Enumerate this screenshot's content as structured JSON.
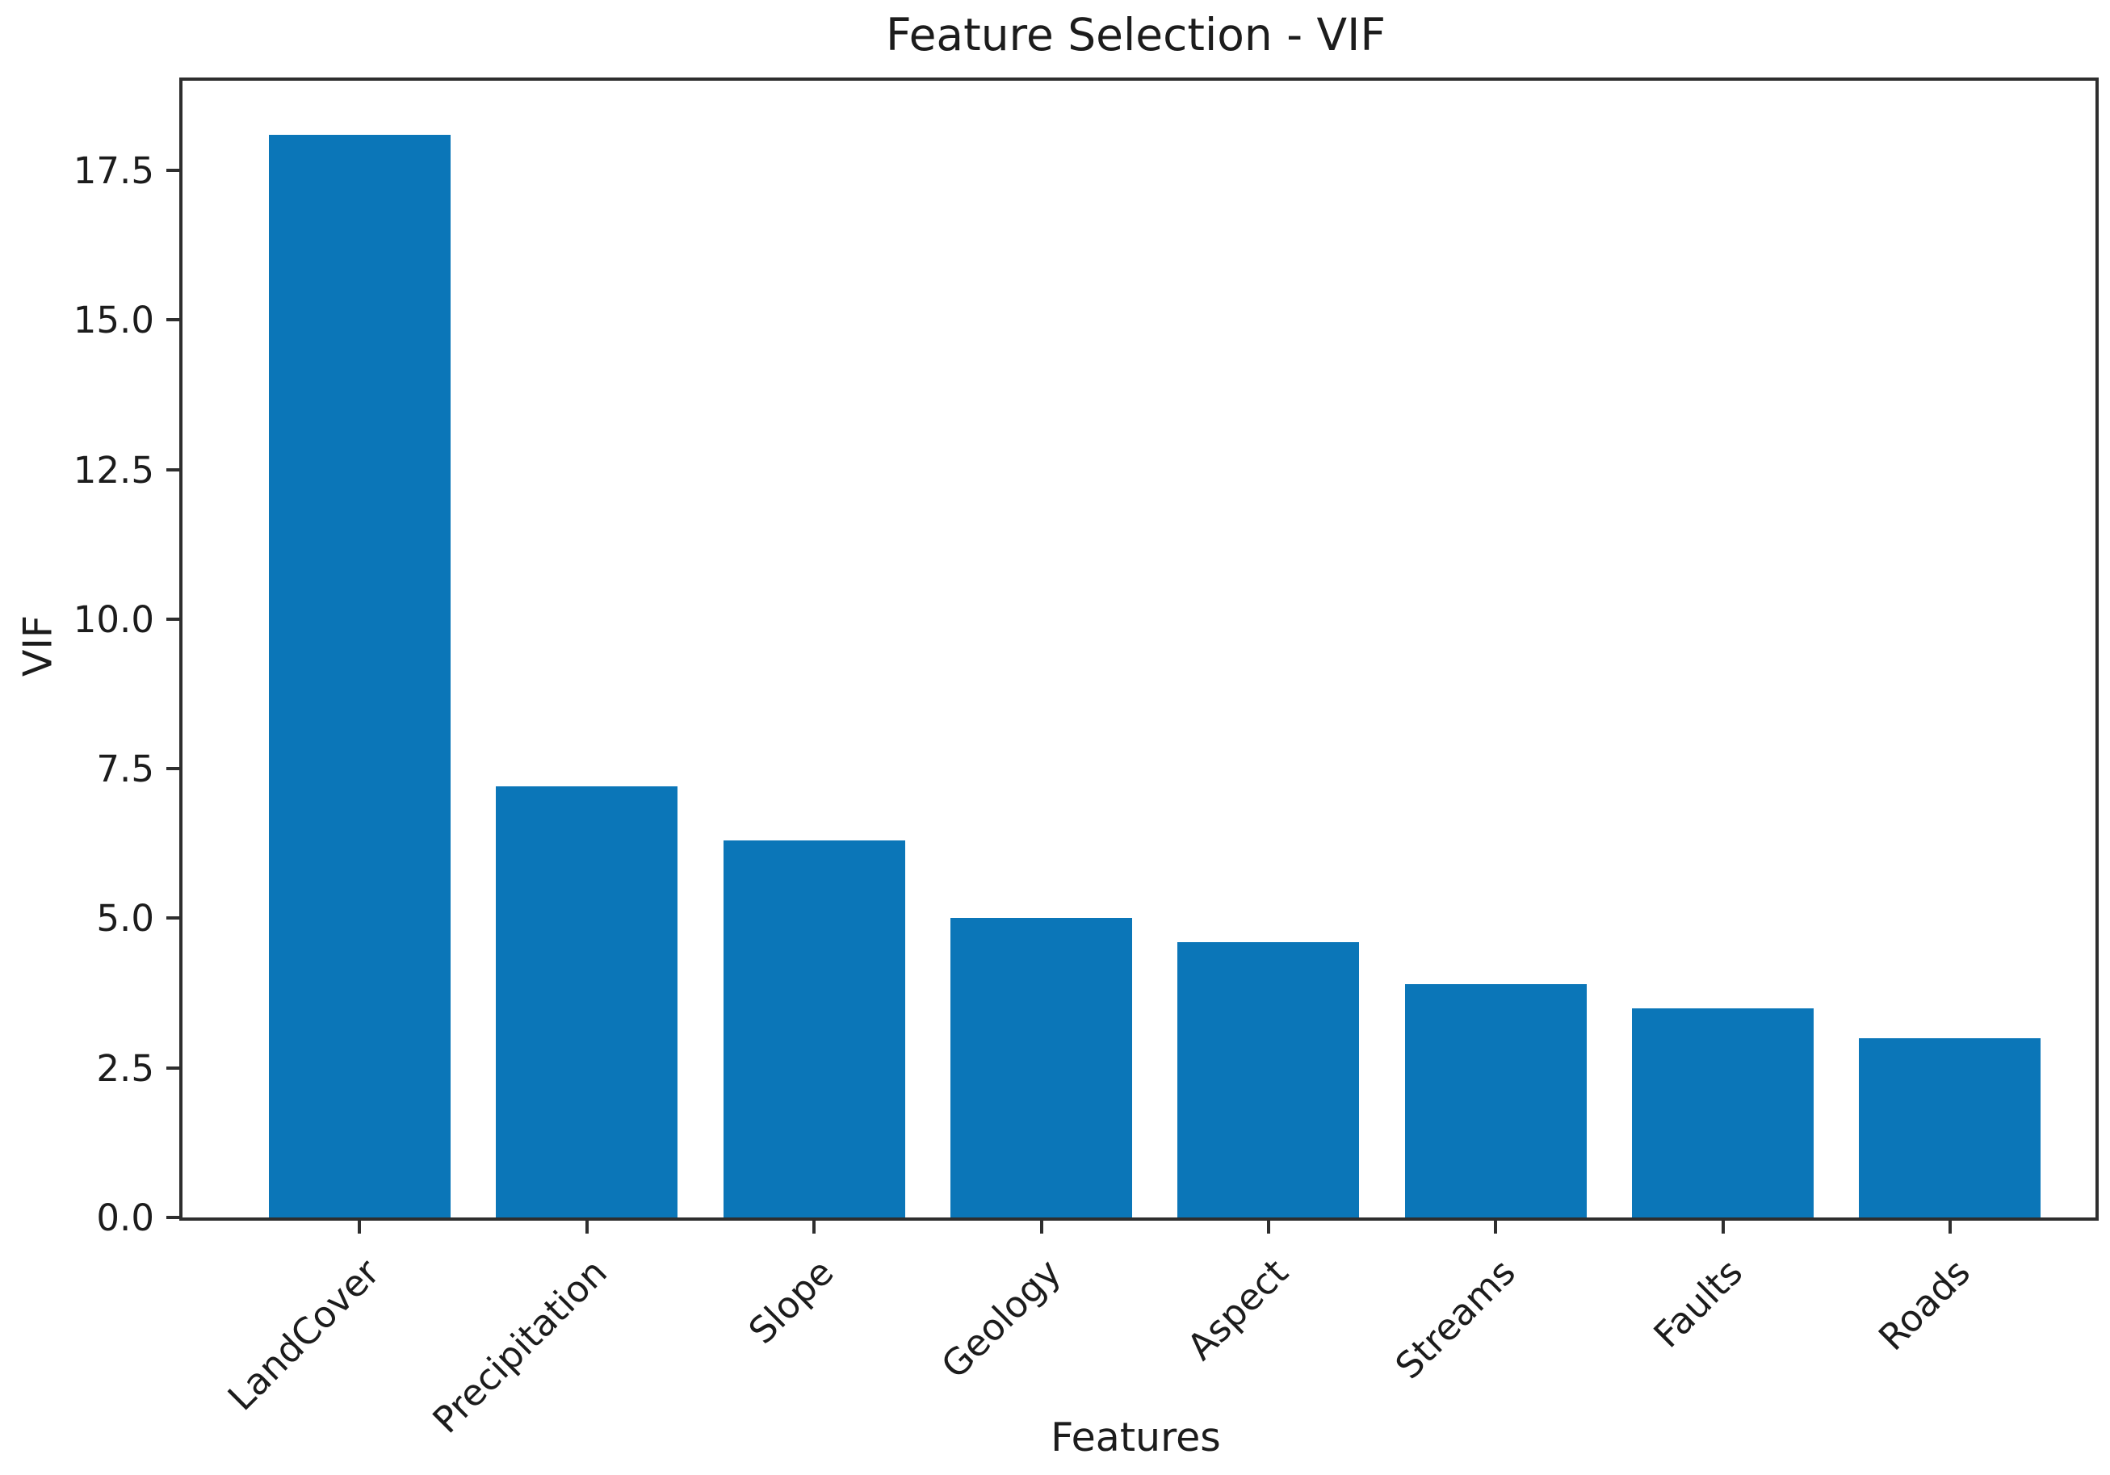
{
  "chart_data": {
    "type": "bar",
    "title": "Feature Selection - VIF",
    "xlabel": "Features",
    "ylabel": "VIF",
    "categories": [
      "LandCover",
      "Precipitation",
      "Slope",
      "Geology",
      "Aspect",
      "Streams",
      "Faults",
      "Roads"
    ],
    "values": [
      18.1,
      7.2,
      6.3,
      5.0,
      4.6,
      3.9,
      3.5,
      3.0
    ],
    "ytick_labels": [
      "0.0",
      "2.5",
      "5.0",
      "7.5",
      "10.0",
      "12.5",
      "15.0",
      "17.5"
    ],
    "ylim": [
      0,
      19
    ],
    "xlim": [
      -0.78,
      7.64
    ],
    "bar_width": 0.8,
    "x_tick_rotation_deg": 45,
    "grid": false,
    "legend": false,
    "colors": {
      "bar": "#0b76b8",
      "axis": "#2e2e2e",
      "text": "#1c1c1c",
      "background": "#ffffff"
    }
  }
}
